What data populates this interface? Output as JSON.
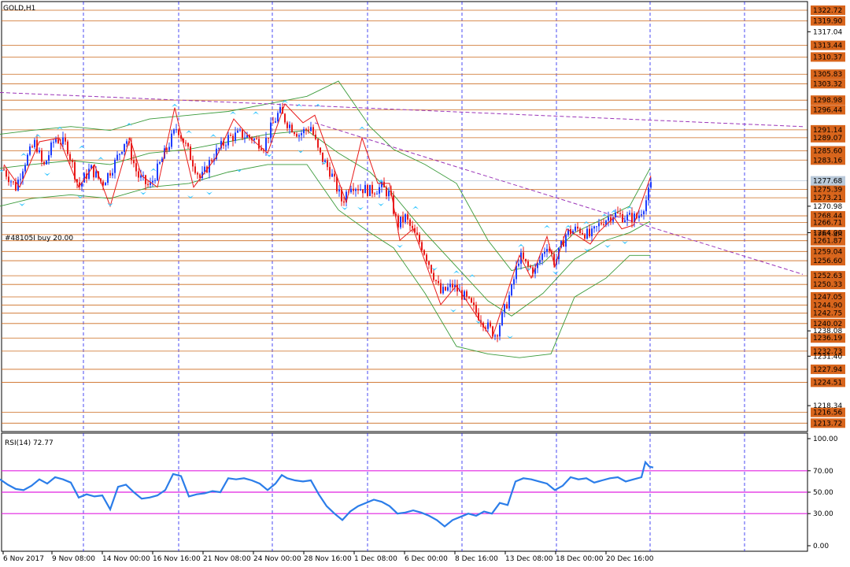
{
  "window": {
    "title": "GOLD,H1"
  },
  "trade_label": "#48105I buy 20.00",
  "colors": {
    "bull": "#1e3cff",
    "bear": "#e81a1a",
    "grid": "#1e1ef0",
    "level_line": "#cc6a1e",
    "level_fill": "#d8651c",
    "trend": "#9b35b8",
    "bands": "#3a9a3a",
    "fractal": "#3cc8ff",
    "zigzag": "#e81a1a",
    "rsi_line": "#2b7de9",
    "rsi_levels": "#e020e0",
    "current": "#b9c9d9"
  },
  "chart_data": [
    {
      "type": "candlestick",
      "title": "GOLD,H1",
      "symbol": "GOLD",
      "timeframe": "H1",
      "ylim": [
        1211.5,
        1325.0
      ],
      "price_axis_labels": [
        "1322.72",
        "1319.90",
        "1317.04",
        "1313.44",
        "1310.37",
        "1305.83",
        "1303.32",
        "1298.98",
        "1296.44",
        "1291.14",
        "1289.07",
        "1285.60",
        "1283.16",
        "1277.68",
        "1275.39",
        "1273.21",
        "1270.98",
        "1268.44",
        "1266.71",
        "1264.00",
        "1263.48",
        "1261.87",
        "1259.04",
        "1256.60",
        "1252.63",
        "1250.33",
        "1247.05",
        "1244.90",
        "1242.75",
        "1240.02",
        "1238.08",
        "1236.19",
        "1232.73",
        "1231.40",
        "1227.94",
        "1224.51",
        "1218.34",
        "1216.56",
        "1213.72"
      ],
      "boxed_levels": [
        "1322.72",
        "1319.90",
        "1313.44",
        "1310.37",
        "1305.83",
        "1303.32",
        "1298.98",
        "1296.44",
        "1291.14",
        "1289.07",
        "1285.60",
        "1283.16",
        "1275.39",
        "1273.21",
        "1268.44",
        "1266.71",
        "1263.48",
        "1261.87",
        "1259.04",
        "1256.60",
        "1252.63",
        "1250.33",
        "1247.05",
        "1244.90",
        "1242.75",
        "1240.02",
        "1236.19",
        "1232.73",
        "1227.94",
        "1224.51",
        "1216.56",
        "1213.72"
      ],
      "plain_levels": [
        "1317.04",
        "1270.98",
        "1264.00",
        "1238.08",
        "1231.40",
        "1218.34"
      ],
      "current_price": "1277.68",
      "time_labels": [
        "6 Nov 2017",
        "9 Nov 08:00",
        "14 Nov 00:00",
        "16 Nov 16:00",
        "21 Nov 08:00",
        "24 Nov 00:00",
        "28 Nov 16:00",
        "1 Dec 08:00",
        "6 Dec 00:00",
        "8 Dec 16:00",
        "13 Dec 08:00",
        "18 Dec 00:00",
        "20 Dec 16:00"
      ],
      "close_path": [
        [
          0,
          1282
        ],
        [
          10,
          1279
        ],
        [
          20,
          1276
        ],
        [
          30,
          1282
        ],
        [
          45,
          1288
        ],
        [
          55,
          1281
        ],
        [
          70,
          1289
        ],
        [
          85,
          1287
        ],
        [
          100,
          1276
        ],
        [
          115,
          1281
        ],
        [
          130,
          1277
        ],
        [
          145,
          1282
        ],
        [
          160,
          1289
        ],
        [
          175,
          1279
        ],
        [
          190,
          1276
        ],
        [
          205,
          1283
        ],
        [
          225,
          1292
        ],
        [
          240,
          1285
        ],
        [
          255,
          1278
        ],
        [
          270,
          1284
        ],
        [
          290,
          1289
        ],
        [
          305,
          1290
        ],
        [
          320,
          1289
        ],
        [
          335,
          1287
        ],
        [
          345,
          1292
        ],
        [
          355,
          1296
        ],
        [
          365,
          1293
        ],
        [
          380,
          1290
        ],
        [
          395,
          1292
        ],
        [
          405,
          1285
        ],
        [
          420,
          1280
        ],
        [
          435,
          1272
        ],
        [
          445,
          1277
        ],
        [
          455,
          1276
        ],
        [
          470,
          1275
        ],
        [
          485,
          1276
        ],
        [
          495,
          1274
        ],
        [
          505,
          1266
        ],
        [
          515,
          1268
        ],
        [
          525,
          1264
        ],
        [
          535,
          1261
        ],
        [
          545,
          1256
        ],
        [
          560,
          1248
        ],
        [
          575,
          1250
        ],
        [
          590,
          1247
        ],
        [
          605,
          1243
        ],
        [
          620,
          1239
        ],
        [
          630,
          1237
        ],
        [
          640,
          1243
        ],
        [
          650,
          1249
        ],
        [
          660,
          1258
        ],
        [
          670,
          1255
        ],
        [
          680,
          1254
        ],
        [
          695,
          1261
        ],
        [
          705,
          1256
        ],
        [
          720,
          1264
        ],
        [
          735,
          1265
        ],
        [
          750,
          1263
        ],
        [
          765,
          1267
        ],
        [
          780,
          1269
        ],
        [
          795,
          1268
        ],
        [
          810,
          1268
        ],
        [
          820,
          1272
        ],
        [
          828,
          1277
        ]
      ],
      "bollinger": {
        "upper": [
          [
            0,
            1290
          ],
          [
            40,
            1291
          ],
          [
            90,
            1292
          ],
          [
            140,
            1291
          ],
          [
            190,
            1294
          ],
          [
            240,
            1295
          ],
          [
            290,
            1296
          ],
          [
            340,
            1298
          ],
          [
            390,
            1300
          ],
          [
            430,
            1304
          ],
          [
            470,
            1292
          ],
          [
            500,
            1286
          ],
          [
            540,
            1282
          ],
          [
            580,
            1277
          ],
          [
            620,
            1262
          ],
          [
            650,
            1254
          ],
          [
            690,
            1256
          ],
          [
            730,
            1264
          ],
          [
            770,
            1268
          ],
          [
            800,
            1271
          ],
          [
            826,
            1281
          ]
        ],
        "middle": [
          [
            0,
            1281
          ],
          [
            40,
            1282
          ],
          [
            90,
            1283
          ],
          [
            140,
            1282
          ],
          [
            190,
            1285
          ],
          [
            240,
            1286
          ],
          [
            290,
            1288
          ],
          [
            340,
            1290
          ],
          [
            390,
            1291
          ],
          [
            430,
            1285
          ],
          [
            470,
            1280
          ],
          [
            500,
            1274
          ],
          [
            540,
            1264
          ],
          [
            580,
            1255
          ],
          [
            620,
            1246
          ],
          [
            650,
            1242
          ],
          [
            690,
            1248
          ],
          [
            730,
            1257
          ],
          [
            770,
            1262
          ],
          [
            800,
            1264
          ],
          [
            826,
            1267
          ]
        ],
        "lower": [
          [
            0,
            1271
          ],
          [
            40,
            1273
          ],
          [
            90,
            1274
          ],
          [
            140,
            1273
          ],
          [
            190,
            1276
          ],
          [
            240,
            1277
          ],
          [
            290,
            1280
          ],
          [
            340,
            1282
          ],
          [
            390,
            1282
          ],
          [
            430,
            1270
          ],
          [
            470,
            1264
          ],
          [
            500,
            1260
          ],
          [
            540,
            1248
          ],
          [
            580,
            1234
          ],
          [
            620,
            1232
          ],
          [
            660,
            1231
          ],
          [
            700,
            1232
          ],
          [
            730,
            1247
          ],
          [
            770,
            1252
          ],
          [
            800,
            1258
          ],
          [
            826,
            1258
          ]
        ]
      },
      "zigzag": [
        [
          5,
          1282
        ],
        [
          25,
          1276
        ],
        [
          50,
          1288
        ],
        [
          75,
          1289
        ],
        [
          100,
          1276
        ],
        [
          120,
          1282
        ],
        [
          140,
          1271
        ],
        [
          165,
          1289
        ],
        [
          180,
          1279
        ],
        [
          200,
          1276
        ],
        [
          222,
          1297
        ],
        [
          246,
          1276
        ],
        [
          275,
          1284
        ],
        [
          297,
          1294
        ],
        [
          318,
          1289
        ],
        [
          340,
          1285
        ],
        [
          362,
          1298
        ],
        [
          385,
          1293
        ],
        [
          400,
          1295
        ],
        [
          440,
          1272
        ],
        [
          460,
          1289
        ],
        [
          480,
          1277
        ],
        [
          495,
          1277
        ],
        [
          508,
          1262
        ],
        [
          525,
          1265
        ],
        [
          560,
          1245
        ],
        [
          580,
          1250
        ],
        [
          625,
          1236
        ],
        [
          660,
          1258
        ],
        [
          675,
          1252
        ],
        [
          695,
          1263
        ],
        [
          705,
          1255
        ],
        [
          720,
          1265
        ],
        [
          750,
          1261
        ],
        [
          760,
          1264
        ],
        [
          780,
          1268
        ],
        [
          790,
          1265
        ],
        [
          805,
          1266
        ],
        [
          827,
          1279
        ]
      ],
      "trendlines": [
        {
          "from": [
            0,
            1301
          ],
          "to": [
            1020,
            1292
          ]
        },
        {
          "from": [
            400,
            1293
          ],
          "to": [
            1020,
            1253
          ]
        }
      ],
      "fractals_up": [
        [
          30,
          1285
        ],
        [
          48,
          1290
        ],
        [
          76,
          1292
        ],
        [
          104,
          1287
        ],
        [
          128,
          1284
        ],
        [
          164,
          1293
        ],
        [
          195,
          1281
        ],
        [
          222,
          1298
        ],
        [
          240,
          1291
        ],
        [
          271,
          1290
        ],
        [
          296,
          1296
        ],
        [
          325,
          1296
        ],
        [
          362,
          1299
        ],
        [
          380,
          1298
        ],
        [
          404,
          1298
        ],
        [
          460,
          1292
        ],
        [
          484,
          1278
        ],
        [
          528,
          1271
        ],
        [
          580,
          1254
        ],
        [
          600,
          1253
        ],
        [
          662,
          1261
        ],
        [
          695,
          1266
        ],
        [
          722,
          1266
        ],
        [
          745,
          1267
        ],
        [
          768,
          1269
        ],
        [
          780,
          1270
        ],
        [
          800,
          1271
        ]
      ],
      "fractals_down": [
        [
          2,
          1280
        ],
        [
          28,
          1271
        ],
        [
          60,
          1279
        ],
        [
          102,
          1273
        ],
        [
          140,
          1271
        ],
        [
          182,
          1274
        ],
        [
          242,
          1273
        ],
        [
          266,
          1274
        ],
        [
          304,
          1280
        ],
        [
          342,
          1284
        ],
        [
          382,
          1285
        ],
        [
          412,
          1282
        ],
        [
          438,
          1270
        ],
        [
          458,
          1270
        ],
        [
          484,
          1271
        ],
        [
          508,
          1260
        ],
        [
          552,
          1254
        ],
        [
          576,
          1243
        ],
        [
          608,
          1240
        ],
        [
          648,
          1236
        ],
        [
          672,
          1254
        ],
        [
          706,
          1253
        ],
        [
          746,
          1259
        ],
        [
          772,
          1260
        ],
        [
          794,
          1261
        ]
      ],
      "rsi": {
        "label": "RSI(14) 72.77",
        "axis_labels": [
          "100.00",
          "70.00",
          "50.00",
          "30.00",
          "0.00"
        ],
        "levels": [
          70,
          50,
          30
        ],
        "ylim": [
          0,
          100
        ],
        "values": [
          [
            0,
            62
          ],
          [
            10,
            57
          ],
          [
            20,
            53
          ],
          [
            30,
            52
          ],
          [
            40,
            56
          ],
          [
            50,
            62
          ],
          [
            60,
            58
          ],
          [
            70,
            64
          ],
          [
            80,
            62
          ],
          [
            90,
            59
          ],
          [
            100,
            45
          ],
          [
            110,
            48
          ],
          [
            120,
            46
          ],
          [
            130,
            47
          ],
          [
            140,
            34
          ],
          [
            150,
            55
          ],
          [
            160,
            57
          ],
          [
            170,
            50
          ],
          [
            180,
            44
          ],
          [
            190,
            45
          ],
          [
            200,
            47
          ],
          [
            210,
            52
          ],
          [
            220,
            67
          ],
          [
            230,
            65
          ],
          [
            240,
            46
          ],
          [
            250,
            48
          ],
          [
            260,
            49
          ],
          [
            270,
            51
          ],
          [
            280,
            50
          ],
          [
            290,
            63
          ],
          [
            300,
            62
          ],
          [
            310,
            63
          ],
          [
            320,
            61
          ],
          [
            330,
            58
          ],
          [
            340,
            52
          ],
          [
            350,
            58
          ],
          [
            358,
            66
          ],
          [
            365,
            63
          ],
          [
            375,
            61
          ],
          [
            385,
            60
          ],
          [
            395,
            61
          ],
          [
            405,
            48
          ],
          [
            415,
            37
          ],
          [
            425,
            30
          ],
          [
            435,
            24
          ],
          [
            445,
            32
          ],
          [
            455,
            37
          ],
          [
            465,
            40
          ],
          [
            475,
            43
          ],
          [
            485,
            41
          ],
          [
            495,
            37
          ],
          [
            505,
            30
          ],
          [
            515,
            31
          ],
          [
            525,
            33
          ],
          [
            535,
            31
          ],
          [
            545,
            28
          ],
          [
            555,
            24
          ],
          [
            565,
            18
          ],
          [
            575,
            24
          ],
          [
            585,
            27
          ],
          [
            595,
            30
          ],
          [
            605,
            28
          ],
          [
            615,
            32
          ],
          [
            625,
            30
          ],
          [
            635,
            40
          ],
          [
            645,
            38
          ],
          [
            655,
            60
          ],
          [
            665,
            63
          ],
          [
            675,
            62
          ],
          [
            685,
            60
          ],
          [
            695,
            58
          ],
          [
            705,
            52
          ],
          [
            715,
            56
          ],
          [
            725,
            64
          ],
          [
            735,
            62
          ],
          [
            745,
            63
          ],
          [
            755,
            59
          ],
          [
            765,
            61
          ],
          [
            775,
            63
          ],
          [
            785,
            64
          ],
          [
            795,
            60
          ],
          [
            805,
            62
          ],
          [
            815,
            64
          ],
          [
            820,
            78
          ],
          [
            825,
            74
          ],
          [
            830,
            73
          ]
        ]
      }
    }
  ]
}
